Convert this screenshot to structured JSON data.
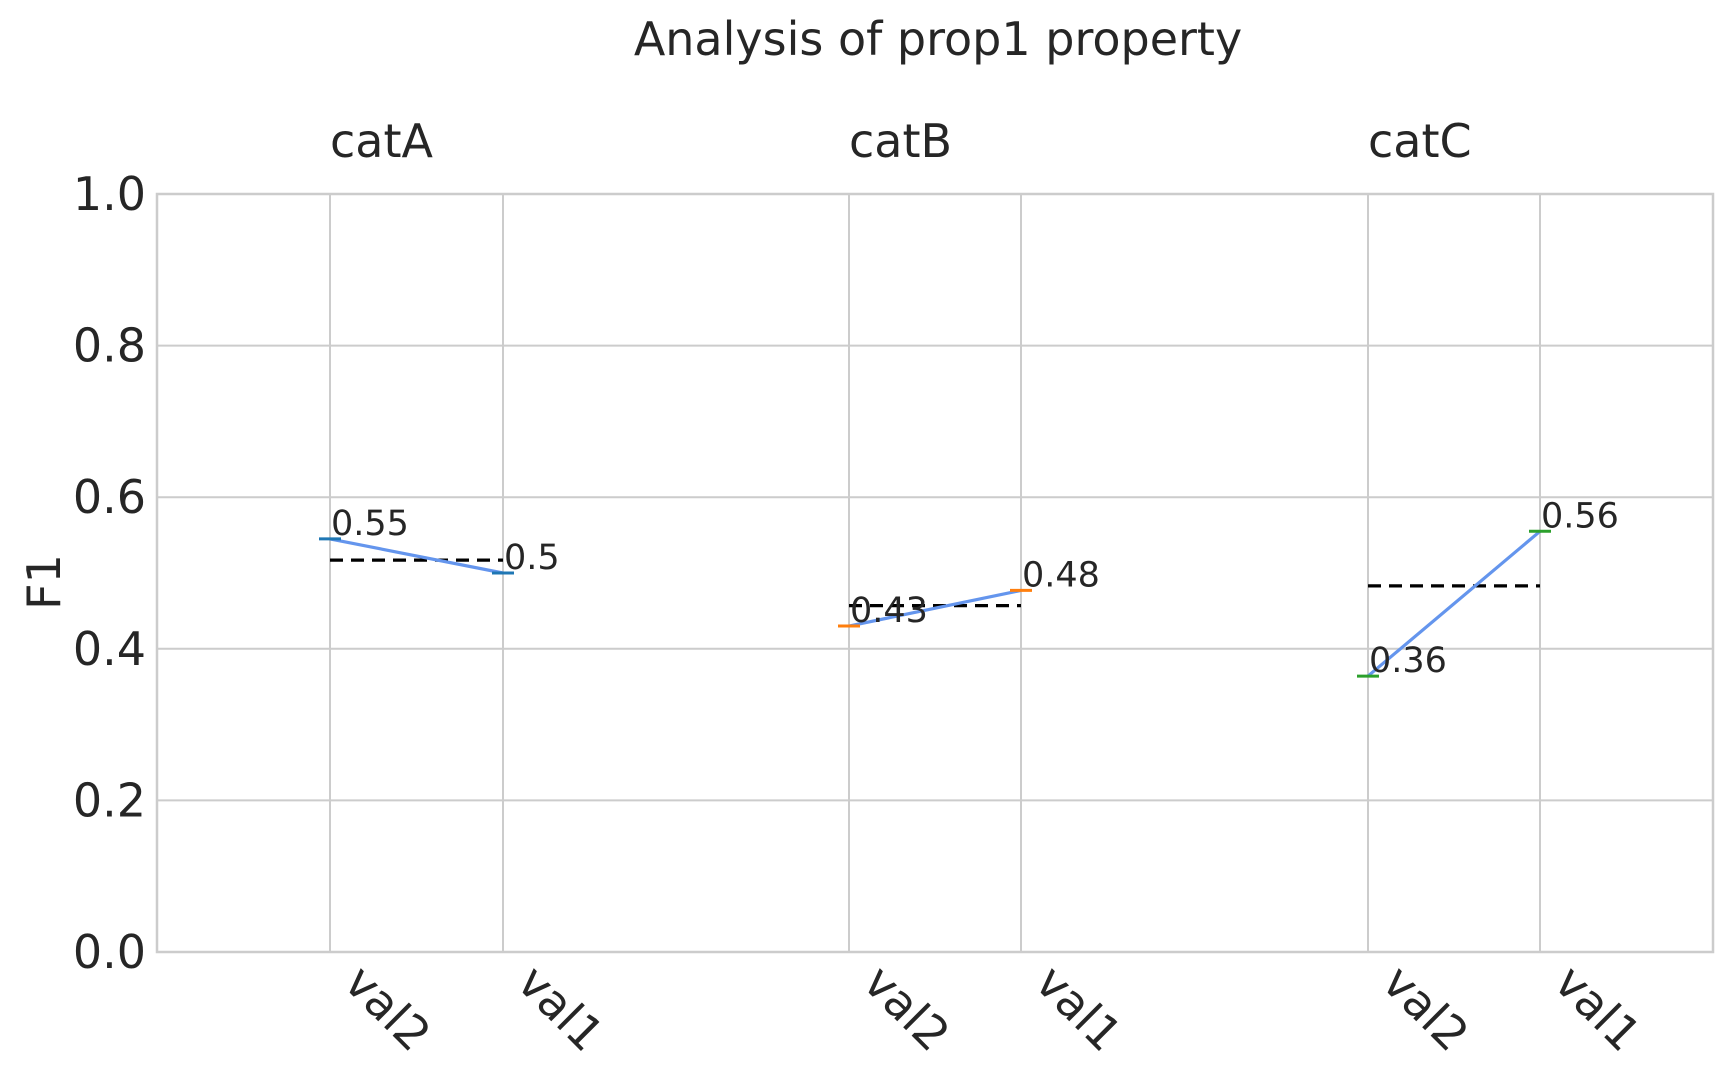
{
  "chart_data": {
    "type": "line",
    "title": "Analysis of prop1 property",
    "ylabel": "F1",
    "xlabel": "",
    "ylim": [
      0.0,
      1.0
    ],
    "yticks": [
      "0.0",
      "0.2",
      "0.4",
      "0.6",
      "0.8",
      "1.0"
    ],
    "grid": true,
    "groups": [
      {
        "name": "catA",
        "categories": [
          "val2",
          "val1"
        ],
        "values": [
          0.545,
          0.5
        ],
        "labels": [
          "0.55",
          "0.5"
        ],
        "mean": 0.517,
        "marker_color": "#1f77b4"
      },
      {
        "name": "catB",
        "categories": [
          "val2",
          "val1"
        ],
        "values": [
          0.43,
          0.477
        ],
        "labels": [
          "0.43",
          "0.48"
        ],
        "mean": 0.457,
        "marker_color": "#ff7f0e"
      },
      {
        "name": "catC",
        "categories": [
          "val2",
          "val1"
        ],
        "values": [
          0.364,
          0.555
        ],
        "labels": [
          "0.36",
          "0.56"
        ],
        "mean": 0.483,
        "marker_color": "#2ca02c"
      }
    ],
    "line_color": "#6495ed",
    "mean_line_color": "#000000"
  }
}
